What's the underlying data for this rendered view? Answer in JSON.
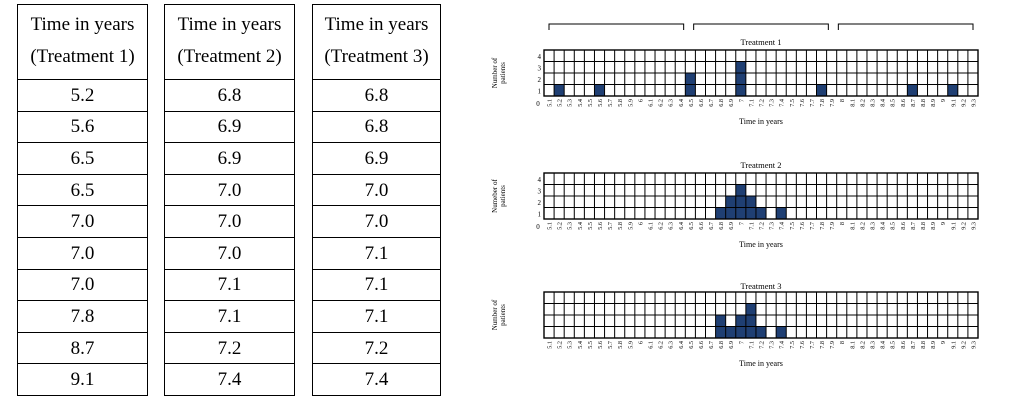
{
  "tables": [
    {
      "header_line1": "Time in years",
      "header_line2": "(Treatment 1)",
      "values": [
        "5.2",
        "5.6",
        "6.5",
        "6.5",
        "7.0",
        "7.0",
        "7.0",
        "7.8",
        "8.7",
        "9.1"
      ]
    },
    {
      "header_line1": "Time in years",
      "header_line2": "(Treatment 2)",
      "values": [
        "6.8",
        "6.9",
        "6.9",
        "7.0",
        "7.0",
        "7.0",
        "7.1",
        "7.1",
        "7.2",
        "7.4"
      ]
    },
    {
      "header_line1": "Time in years",
      "header_line2": "(Treatment 3)",
      "values": [
        "6.8",
        "6.8",
        "6.9",
        "7.0",
        "7.0",
        "7.1",
        "7.1",
        "7.1",
        "7.2",
        "7.4"
      ]
    }
  ],
  "colors": {
    "filled": "#1f3f73",
    "grid": "#000000"
  },
  "chart_data": [
    {
      "type": "bar",
      "title": "Treatment 1",
      "xlabel": "Time in years",
      "ylabel": "Number of patients",
      "ylim": [
        0,
        4
      ],
      "ytick_labels": [
        "0",
        "1",
        "2",
        "3",
        "4"
      ],
      "show_y_ticks": true,
      "show_zero_label": true,
      "categories": [
        "5.1",
        "5.2",
        "5.3",
        "5.4",
        "5.5",
        "5.6",
        "5.7",
        "5.8",
        "5.9",
        "6",
        "6.1",
        "6.2",
        "6.3",
        "6.4",
        "6.5",
        "6.6",
        "6.7",
        "6.8",
        "6.9",
        "7",
        "7.1",
        "7.2",
        "7.3",
        "7.4",
        "7.5",
        "7.6",
        "7.7",
        "7.8",
        "7.9",
        "8",
        "8.1",
        "8.2",
        "8.3",
        "8.4",
        "8.5",
        "8.6",
        "8.7",
        "8.8",
        "8.9",
        "9",
        "9.1",
        "9.2",
        "9.3"
      ],
      "values": [
        0,
        1,
        0,
        0,
        0,
        1,
        0,
        0,
        0,
        0,
        0,
        0,
        0,
        0,
        2,
        0,
        0,
        0,
        0,
        3,
        0,
        0,
        0,
        0,
        0,
        0,
        0,
        1,
        0,
        0,
        0,
        0,
        0,
        0,
        0,
        0,
        1,
        0,
        0,
        0,
        1,
        0,
        0
      ],
      "brackets": 3
    },
    {
      "type": "bar",
      "title": "Treatment 2",
      "xlabel": "Time in years",
      "ylabel": "Numeber of patients",
      "ylim": [
        0,
        4
      ],
      "ytick_labels": [
        "0",
        "1",
        "2",
        "3",
        "4"
      ],
      "show_y_ticks": true,
      "show_zero_label": true,
      "categories": [
        "5.1",
        "5.2",
        "5.3",
        "5.4",
        "5.5",
        "5.6",
        "5.7",
        "5.8",
        "5.9",
        "6",
        "6.1",
        "6.2",
        "6.3",
        "6.4",
        "6.5",
        "6.6",
        "6.7",
        "6.8",
        "6.9",
        "7",
        "7.1",
        "7.2",
        "7.3",
        "7.4",
        "7.5",
        "7.6",
        "7.7",
        "7.8",
        "7.9",
        "8",
        "8.1",
        "8.2",
        "8.3",
        "8.4",
        "8.5",
        "8.6",
        "8.7",
        "8.8",
        "8.9",
        "9",
        "9.1",
        "9.2",
        "9.3"
      ],
      "values": [
        0,
        0,
        0,
        0,
        0,
        0,
        0,
        0,
        0,
        0,
        0,
        0,
        0,
        0,
        0,
        0,
        0,
        1,
        2,
        3,
        2,
        1,
        0,
        1,
        0,
        0,
        0,
        0,
        0,
        0,
        0,
        0,
        0,
        0,
        0,
        0,
        0,
        0,
        0,
        0,
        0,
        0,
        0
      ],
      "brackets": 0
    },
    {
      "type": "bar",
      "title": "Treatment 3",
      "xlabel": "Time in years",
      "ylabel": "Number of patients",
      "ylim": [
        0,
        4
      ],
      "ytick_labels": [],
      "show_y_ticks": false,
      "show_zero_label": false,
      "categories": [
        "5.1",
        "5.2",
        "5.3",
        "5.4",
        "5.5",
        "5.6",
        "5.7",
        "5.8",
        "5.9",
        "6",
        "6.1",
        "6.2",
        "6.3",
        "6.4",
        "6.5",
        "6.6",
        "6.7",
        "6.8",
        "6.9",
        "7",
        "7.1",
        "7.2",
        "7.3",
        "7.4",
        "7.5",
        "7.6",
        "7.7",
        "7.8",
        "7.9",
        "8",
        "8.1",
        "8.2",
        "8.3",
        "8.4",
        "8.5",
        "8.6",
        "8.7",
        "8.8",
        "8.9",
        "9",
        "9.1",
        "9.2",
        "9.3"
      ],
      "values": [
        0,
        0,
        0,
        0,
        0,
        0,
        0,
        0,
        0,
        0,
        0,
        0,
        0,
        0,
        0,
        0,
        0,
        2,
        1,
        2,
        3,
        1,
        0,
        1,
        0,
        0,
        0,
        0,
        0,
        0,
        0,
        0,
        0,
        0,
        0,
        0,
        0,
        0,
        0,
        0,
        0,
        0,
        0
      ],
      "brackets": 0
    }
  ]
}
